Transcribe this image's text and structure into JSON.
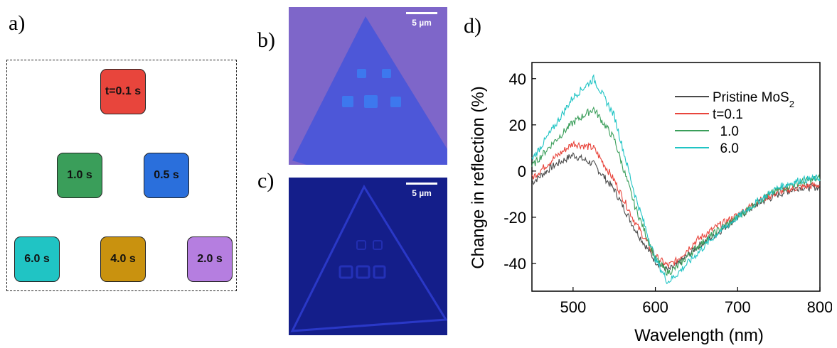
{
  "panel_labels": {
    "a": "a)",
    "b": "b)",
    "c": "c)",
    "d": "d)"
  },
  "schematic": {
    "squares": [
      {
        "label": "t=0.1 s",
        "color": "#e8453c"
      },
      {
        "label": "1.0 s",
        "color": "#3a9e5a"
      },
      {
        "label": "0.5 s",
        "color": "#2a6fdc"
      },
      {
        "label": "6.0 s",
        "color": "#20c4c4"
      },
      {
        "label": "4.0 s",
        "color": "#c9920f"
      },
      {
        "label": "2.0 s",
        "color": "#b57ee0"
      }
    ]
  },
  "micrographs": {
    "b": {
      "scale_bar": "5 µm",
      "background": "#7e66c9",
      "flake": "#4d57d8",
      "spots": "#3d78ee"
    },
    "c": {
      "scale_bar": "5 µm",
      "background": "#141e8a",
      "edge": "#2f3ed6"
    }
  },
  "chart_data": {
    "type": "line",
    "xlabel": "Wavelength (nm)",
    "ylabel": "Change in reflection (%)",
    "xlim": [
      450,
      800
    ],
    "ylim": [
      -52,
      47
    ],
    "xticks": [
      500,
      600,
      700,
      800
    ],
    "yticks": [
      40,
      20,
      0,
      -20,
      -40
    ],
    "legend_position": "top-right",
    "series": [
      {
        "name": "Pristine MoS",
        "name_sub": "2",
        "color": "#4a4a4a",
        "x": [
          450,
          475,
          500,
          525,
          550,
          575,
          600,
          615,
          625,
          650,
          675,
          700,
          725,
          750,
          775,
          800
        ],
        "y": [
          -5,
          2,
          7,
          3,
          -8,
          -25,
          -39,
          -43,
          -41,
          -33,
          -27,
          -20,
          -14,
          -10,
          -7,
          -7
        ]
      },
      {
        "name": "t=0.1",
        "color": "#e8453c",
        "x": [
          450,
          475,
          500,
          525,
          550,
          575,
          600,
          615,
          625,
          650,
          675,
          700,
          725,
          750,
          775,
          800
        ],
        "y": [
          -3,
          5,
          12,
          10,
          -4,
          -22,
          -37,
          -41,
          -39,
          -30,
          -24,
          -19,
          -13,
          -9,
          -7,
          -6
        ]
      },
      {
        "name": "1.0",
        "color": "#3a9e5a",
        "x": [
          450,
          475,
          500,
          525,
          550,
          575,
          600,
          615,
          625,
          650,
          675,
          700,
          725,
          750,
          775,
          800
        ],
        "y": [
          2,
          12,
          21,
          27,
          14,
          -15,
          -38,
          -44,
          -42,
          -33,
          -26,
          -20,
          -13,
          -8,
          -5,
          -3
        ]
      },
      {
        "name": "6.0",
        "color": "#20c4c4",
        "x": [
          450,
          475,
          500,
          525,
          550,
          575,
          600,
          615,
          625,
          650,
          675,
          700,
          725,
          750,
          775,
          800
        ],
        "y": [
          5,
          18,
          32,
          40,
          24,
          -10,
          -38,
          -48,
          -45,
          -36,
          -27,
          -20,
          -13,
          -7,
          -4,
          -3
        ]
      }
    ]
  }
}
